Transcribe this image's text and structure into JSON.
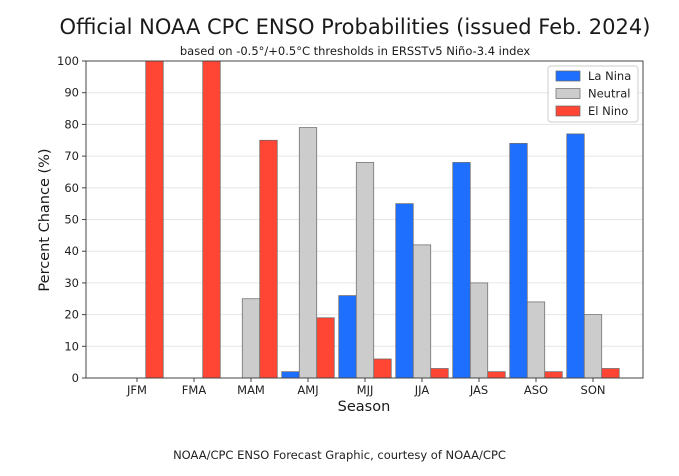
{
  "chart_data": {
    "type": "bar",
    "title": "Official NOAA CPC ENSO Probabilities (issued Feb. 2024)",
    "subtitle": "based on -0.5°/+0.5°C thresholds in ERSSTv5 Niño-3.4 index",
    "xlabel": "Season",
    "ylabel": "Percent Chance (%)",
    "ylim": [
      0,
      100
    ],
    "yticks": [
      0,
      10,
      20,
      30,
      40,
      50,
      60,
      70,
      80,
      90,
      100
    ],
    "grid": true,
    "legend_position": "top-right",
    "categories": [
      "JFM",
      "FMA",
      "MAM",
      "AMJ",
      "MJJ",
      "JJA",
      "JAS",
      "ASO",
      "SON"
    ],
    "series": [
      {
        "name": "La Nina",
        "color": "#1f6fff",
        "values": [
          0,
          0,
          0,
          2,
          26,
          55,
          68,
          74,
          77
        ]
      },
      {
        "name": "Neutral",
        "color": "#cccccc",
        "values": [
          0,
          0,
          25,
          79,
          68,
          42,
          30,
          24,
          20
        ]
      },
      {
        "name": "El Nino",
        "color": "#ff4533",
        "values": [
          100,
          100,
          75,
          19,
          6,
          3,
          2,
          2,
          3
        ]
      }
    ]
  },
  "footer": "NOAA/CPC ENSO Forecast Graphic, courtesy of NOAA/CPC"
}
